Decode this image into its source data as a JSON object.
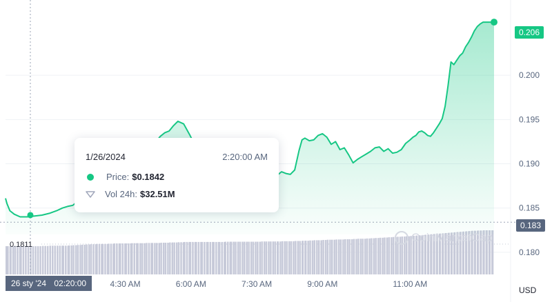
{
  "chart_data": {
    "type": "line",
    "title": "",
    "xlabel": "",
    "ylabel": "",
    "currency_label": "USD",
    "ylim": [
      0.1775,
      0.2085
    ],
    "y_ticks": [
      "0.180",
      "0.185",
      "0.190",
      "0.195",
      "0.200"
    ],
    "x_ticks": [
      "4:30 AM",
      "6:00 AM",
      "7:30 AM",
      "9:00 AM",
      "11:00 AM"
    ],
    "x_range_minutes": [
      106,
      775
    ],
    "x_tick_minutes": [
      270,
      360,
      450,
      540,
      660
    ],
    "series": [
      {
        "x": [
          106,
          108,
          112,
          118,
          126,
          136,
          146,
          156,
          166,
          176,
          184,
          192,
          198,
          204,
          210,
          216,
          222,
          230,
          238,
          246,
          254,
          262,
          270,
          278,
          286,
          292,
          298,
          306,
          312,
          318,
          324,
          330,
          336,
          342,
          350,
          358,
          366,
          374,
          382,
          390,
          398,
          406,
          414,
          420,
          426,
          432,
          438,
          444,
          450,
          456,
          462,
          468,
          474,
          478,
          484,
          490,
          496,
          502,
          508,
          512,
          516,
          522,
          528,
          534,
          540,
          546,
          552,
          558,
          564,
          570,
          576,
          582,
          588,
          594,
          600,
          606,
          612,
          618,
          624,
          630,
          636,
          642,
          648,
          654,
          660,
          664,
          668,
          672,
          676,
          680,
          684,
          688,
          692,
          696,
          700,
          704,
          708,
          712,
          716,
          720,
          724,
          728,
          732,
          736,
          740,
          744,
          748,
          752,
          756,
          760,
          764,
          768,
          772,
          775
        ],
        "price": [
          0.1861,
          0.1855,
          0.1847,
          0.1843,
          0.184,
          0.184,
          0.1841,
          0.1842,
          0.1844,
          0.1847,
          0.185,
          0.1852,
          0.1853,
          0.1857,
          0.1866,
          0.1876,
          0.1886,
          0.189,
          0.1896,
          0.1903,
          0.1908,
          0.1912,
          0.1915,
          0.1917,
          0.1919,
          0.1921,
          0.1922,
          0.1923,
          0.1925,
          0.1931,
          0.1935,
          0.1937,
          0.1943,
          0.1948,
          0.1945,
          0.1933,
          0.192,
          0.1912,
          0.1905,
          0.19,
          0.1896,
          0.1893,
          0.1892,
          0.189,
          0.1888,
          0.1885,
          0.1884,
          0.1884,
          0.188,
          0.1881,
          0.1886,
          0.1888,
          0.1886,
          0.1887,
          0.1891,
          0.1889,
          0.1888,
          0.1893,
          0.1915,
          0.1927,
          0.1929,
          0.1926,
          0.1927,
          0.1932,
          0.1934,
          0.193,
          0.1922,
          0.1925,
          0.1916,
          0.1918,
          0.191,
          0.1901,
          0.1905,
          0.1908,
          0.1911,
          0.1914,
          0.1918,
          0.1919,
          0.1914,
          0.1917,
          0.1912,
          0.1913,
          0.1916,
          0.1923,
          0.1927,
          0.193,
          0.1932,
          0.1936,
          0.1937,
          0.1935,
          0.1932,
          0.1931,
          0.1935,
          0.194,
          0.1945,
          0.1951,
          0.1965,
          0.1988,
          0.2015,
          0.2012,
          0.2017,
          0.2022,
          0.2025,
          0.2032,
          0.2037,
          0.2043,
          0.205,
          0.2055,
          0.2058,
          0.206,
          0.206,
          0.206,
          0.206,
          0.206
        ],
        "volume_index": [
          0.36,
          0.36,
          0.36,
          0.36,
          0.36,
          0.36,
          0.36,
          0.37,
          0.38,
          0.38,
          0.38,
          0.39,
          0.4,
          0.41,
          0.42,
          0.43,
          0.44,
          0.45,
          0.45,
          0.46,
          0.47,
          0.47,
          0.47,
          0.48,
          0.48,
          0.48,
          0.49,
          0.49,
          0.49,
          0.5,
          0.5,
          0.51,
          0.51,
          0.52,
          0.53,
          0.53,
          0.53,
          0.53,
          0.53,
          0.53,
          0.53,
          0.54,
          0.54,
          0.54,
          0.54,
          0.54,
          0.54,
          0.54,
          0.54,
          0.55,
          0.55,
          0.55,
          0.55,
          0.55,
          0.56,
          0.56,
          0.56,
          0.57,
          0.57,
          0.58,
          0.58,
          0.59,
          0.6,
          0.6,
          0.61,
          0.62,
          0.62,
          0.63,
          0.63,
          0.64,
          0.64,
          0.65,
          0.66,
          0.66,
          0.67,
          0.68,
          0.69,
          0.7,
          0.71,
          0.72,
          0.73,
          0.74,
          0.75,
          0.76,
          0.77,
          0.78,
          0.79,
          0.8,
          0.81,
          0.82,
          0.83,
          0.84,
          0.85,
          0.86,
          0.87,
          0.88,
          0.89,
          0.9,
          0.91,
          0.92,
          0.93,
          0.94,
          0.95,
          0.96,
          0.97,
          0.98,
          0.98,
          0.99,
          0.99,
          1.0,
          1.0,
          1.0,
          1.0,
          1.0
        ]
      }
    ],
    "current_price_label": "0.206",
    "baseline_price_label": "0.183",
    "baseline_price": 0.1834,
    "low_label": "0.1811",
    "hover": {
      "x_minute": 140,
      "price": 0.1842,
      "date": "1/26/2024",
      "time": "2:20:00 AM",
      "price_label": "Price:",
      "price_value": "$0.1842",
      "volume_label": "Vol 24h:",
      "volume_value": "$32.51M",
      "axis_date": "26 sty '24",
      "axis_time": "02:20:00"
    },
    "watermark": "CoinMarketCap",
    "colors": {
      "line": "#16c784",
      "area_top": "#16c784",
      "volume_bar": "#c7cad9",
      "grid": "#eff2f5",
      "crosshair": "#9aa3b5",
      "label_bg": "#58667e"
    },
    "grid": true
  }
}
